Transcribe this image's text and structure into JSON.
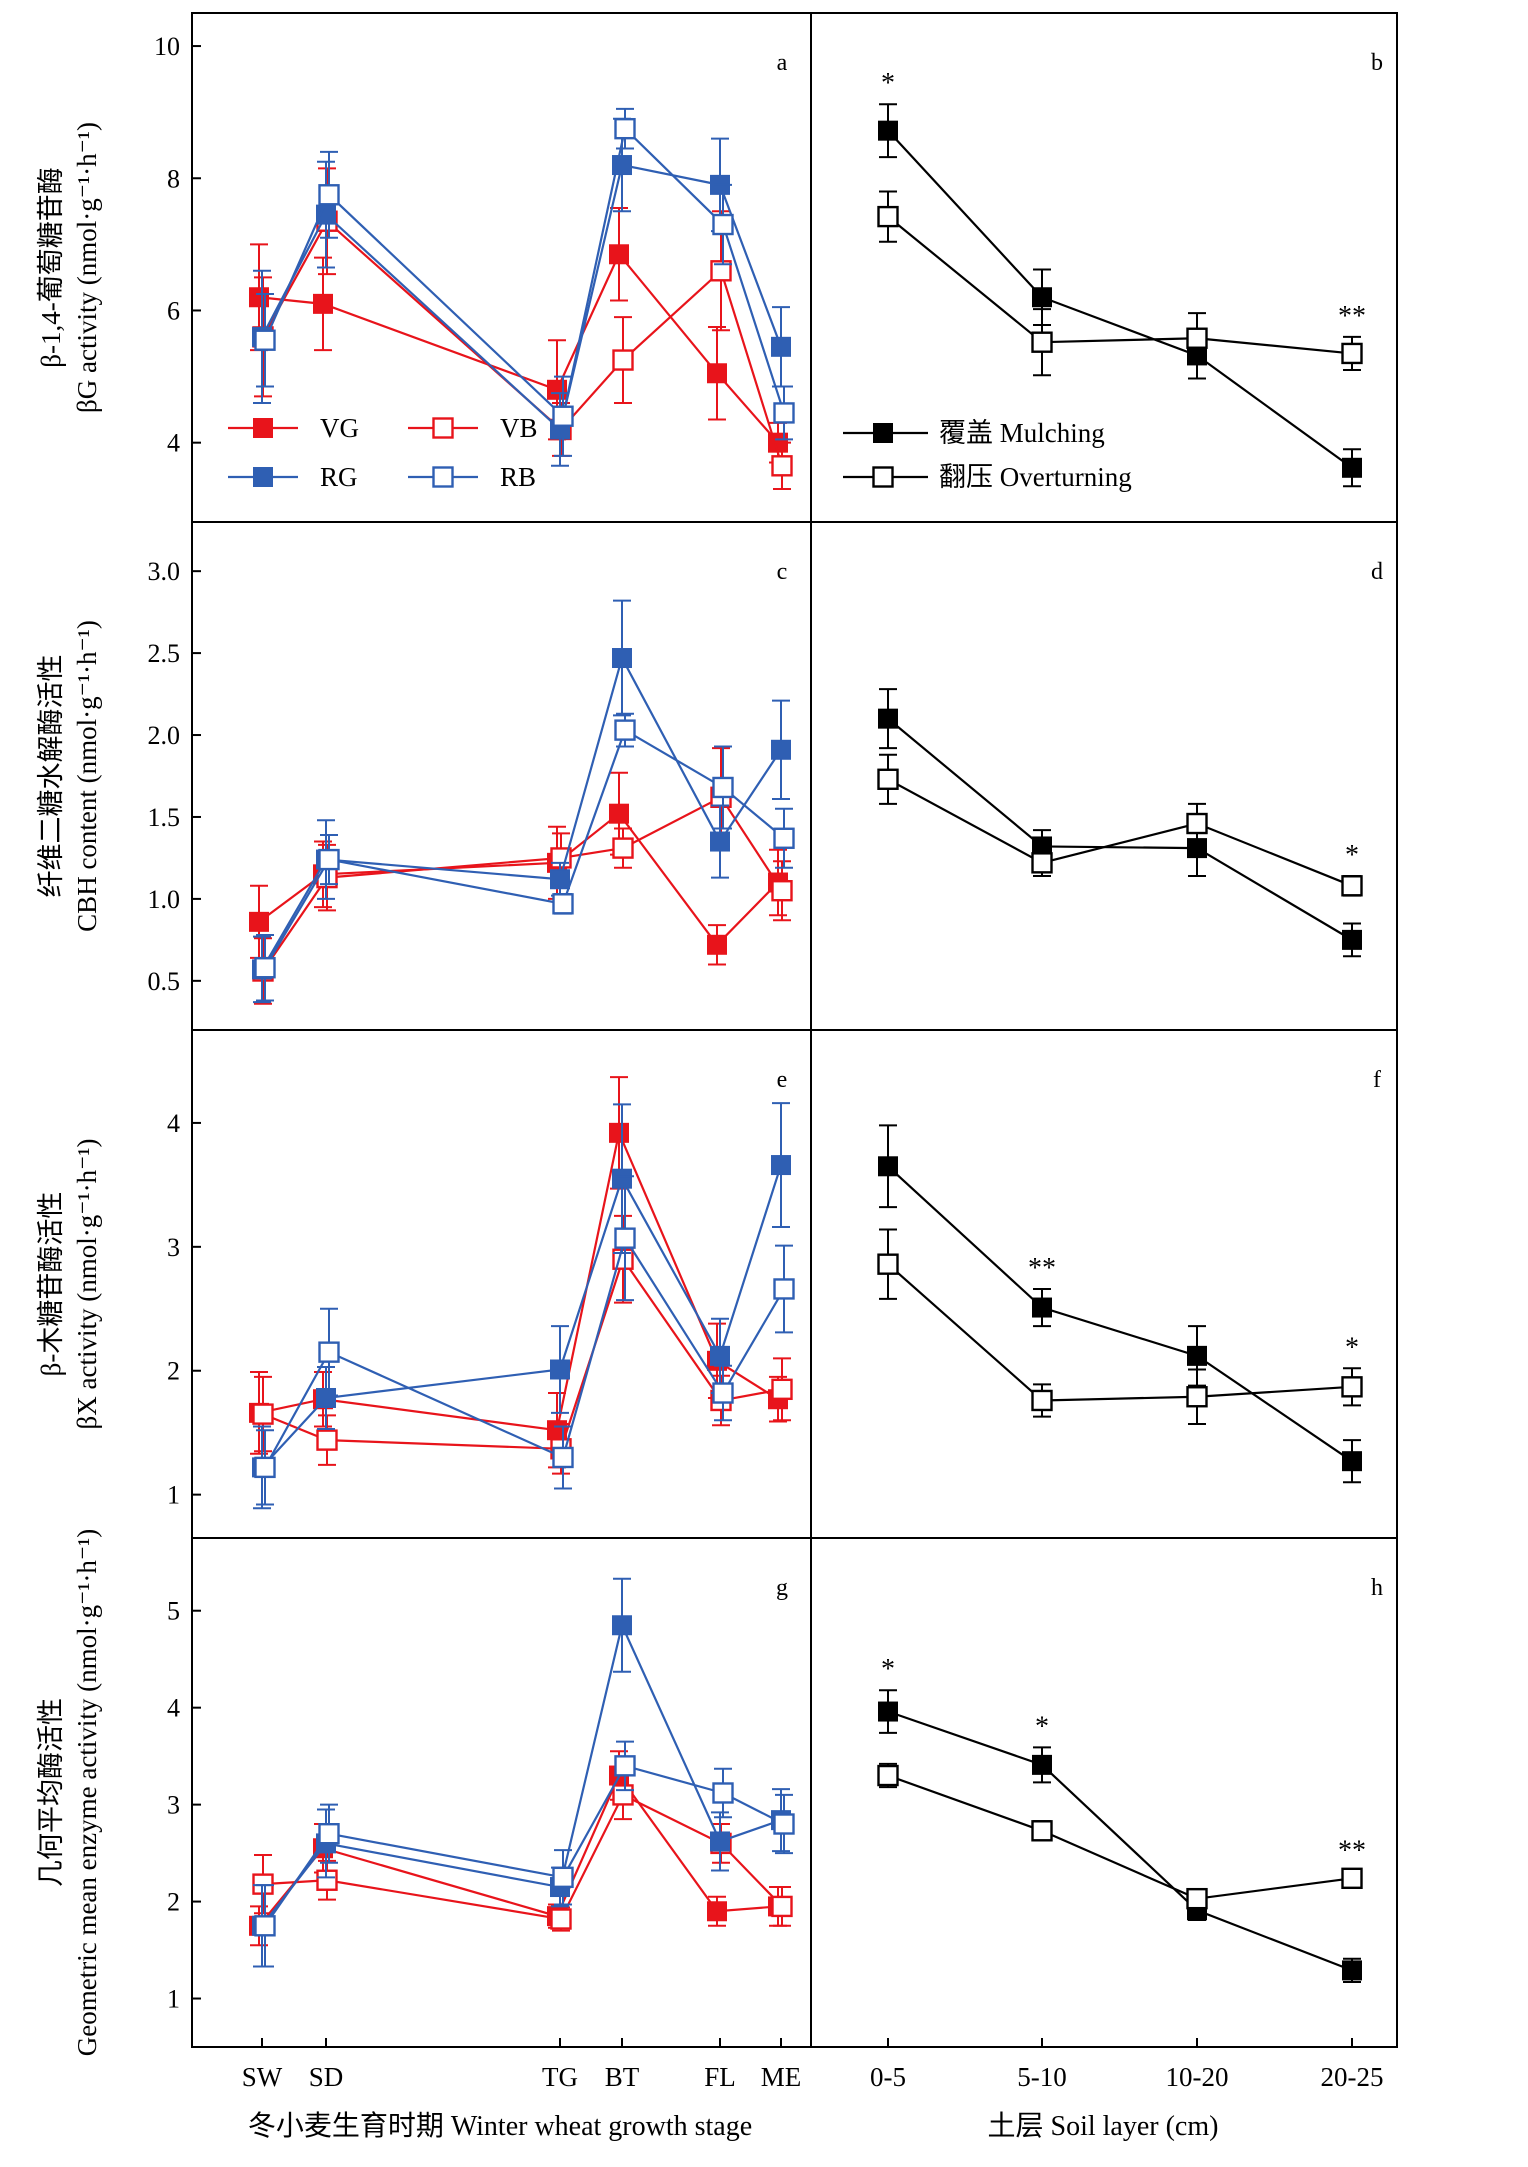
{
  "chart_data": {
    "type": "line",
    "x_left": {
      "categories": [
        "SW",
        "SD",
        "TG",
        "BT",
        "FL",
        "ME"
      ],
      "label": "冬小麦生育时期 Winter wheat growth stage"
    },
    "x_right": {
      "categories": [
        "0-5",
        "5-10",
        "10-20",
        "20-25"
      ],
      "label": "土层 Soil layer (cm)"
    },
    "colors": {
      "V": "#e8141b",
      "R": "#2f5fb3",
      "mulch": "#000000"
    },
    "rows": [
      {
        "ylabel_cn": "β-1,4-葡萄糖苷酶",
        "ylabel_en": "βG activity (nmol·g⁻¹·h⁻¹)",
        "ylim": [
          2.8,
          10.5
        ],
        "yticks": [
          "4",
          "6",
          "8",
          "10"
        ],
        "left": {
          "panel": "a",
          "series": [
            {
              "name": "VG",
              "values": [
                6.2,
                6.1,
                4.8,
                6.85,
                5.05,
                4.0
              ],
              "errors": [
                0.8,
                0.7,
                0.75,
                0.7,
                0.7,
                0.3
              ]
            },
            {
              "name": "VB",
              "values": [
                5.6,
                7.35,
                4.2,
                5.25,
                6.6,
                3.65
              ],
              "errors": [
                0.9,
                0.8,
                0.4,
                0.65,
                0.9,
                0.35
              ]
            },
            {
              "name": "RG",
              "values": [
                5.6,
                7.45,
                4.2,
                8.2,
                7.9,
                5.45
              ],
              "errors": [
                1.0,
                0.8,
                0.55,
                0.7,
                0.7,
                0.6
              ]
            },
            {
              "name": "RB",
              "values": [
                5.55,
                7.75,
                4.4,
                8.75,
                7.3,
                4.45
              ],
              "errors": [
                0.7,
                0.65,
                0.6,
                0.3,
                0.6,
                0.4
              ]
            }
          ]
        },
        "right": {
          "panel": "b",
          "series": [
            {
              "name": "覆盖 Mulching",
              "values": [
                8.72,
                6.2,
                5.32,
                3.62
              ],
              "errors": [
                0.4,
                0.42,
                0.35,
                0.28
              ]
            },
            {
              "name": "翻压 Overturning",
              "values": [
                7.42,
                5.52,
                5.58,
                5.35
              ],
              "errors": [
                0.38,
                0.5,
                0.38,
                0.25
              ]
            }
          ],
          "annotations": [
            "*",
            "",
            "",
            "**"
          ]
        }
      },
      {
        "ylabel_cn": "纤维二糖水解酶活性",
        "ylabel_en": "CBH content (nmol·g⁻¹·h⁻¹)",
        "ylim": [
          0.2,
          3.3
        ],
        "yticks": [
          "0.5",
          "1.0",
          "1.5",
          "2.0",
          "2.5",
          "3.0"
        ],
        "left": {
          "panel": "c",
          "series": [
            {
              "name": "VG",
              "values": [
                0.86,
                1.15,
                1.22,
                1.52,
                0.72,
                1.1
              ],
              "errors": [
                0.22,
                0.2,
                0.22,
                0.25,
                0.12,
                0.2
              ]
            },
            {
              "name": "VB",
              "values": [
                0.56,
                1.13,
                1.25,
                1.31,
                1.62,
                1.05
              ],
              "errors": [
                0.2,
                0.2,
                0.15,
                0.12,
                0.3,
                0.18
              ]
            },
            {
              "name": "RG",
              "values": [
                0.57,
                1.24,
                1.12,
                2.47,
                1.35,
                1.91
              ],
              "errors": [
                0.2,
                0.24,
                0.1,
                0.35,
                0.22,
                0.3
              ]
            },
            {
              "name": "RB",
              "values": [
                0.58,
                1.24,
                0.97,
                2.03,
                1.68,
                1.37
              ],
              "errors": [
                0.2,
                0.15,
                0.06,
                0.1,
                0.25,
                0.18
              ]
            }
          ]
        },
        "right": {
          "panel": "d",
          "series": [
            {
              "name": "覆盖 Mulching",
              "values": [
                2.1,
                1.32,
                1.31,
                0.75
              ],
              "errors": [
                0.18,
                0.1,
                0.17,
                0.1
              ]
            },
            {
              "name": "翻压 Overturning",
              "values": [
                1.73,
                1.22,
                1.46,
                1.08
              ],
              "errors": [
                0.15,
                0.08,
                0.12,
                0.06
              ]
            }
          ],
          "annotations": [
            "",
            "",
            "",
            "*"
          ]
        }
      },
      {
        "ylabel_cn": "β-木糖苷酶活性",
        "ylabel_en": "βX activity (nmol·g⁻¹·h⁻¹)",
        "ylim": [
          0.65,
          4.75
        ],
        "yticks": [
          "1",
          "2",
          "3",
          "4"
        ],
        "left": {
          "panel": "e",
          "series": [
            {
              "name": "VG",
              "values": [
                1.66,
                1.77,
                1.52,
                3.92,
                2.08,
                1.77
              ],
              "errors": [
                0.33,
                0.22,
                0.3,
                0.45,
                0.3,
                0.18
              ]
            },
            {
              "name": "VB",
              "values": [
                1.65,
                1.44,
                1.37,
                2.9,
                1.76,
                1.85
              ],
              "errors": [
                0.3,
                0.2,
                0.2,
                0.35,
                0.2,
                0.25
              ]
            },
            {
              "name": "RG",
              "values": [
                1.22,
                1.78,
                2.01,
                3.55,
                2.12,
                3.66
              ],
              "errors": [
                0.33,
                0.25,
                0.35,
                0.6,
                0.3,
                0.5
              ]
            },
            {
              "name": "RB",
              "values": [
                1.22,
                2.15,
                1.3,
                3.07,
                1.82,
                2.66
              ],
              "errors": [
                0.3,
                0.35,
                0.25,
                0.5,
                0.22,
                0.35
              ]
            }
          ]
        },
        "right": {
          "panel": "f",
          "series": [
            {
              "name": "覆盖 Mulching",
              "values": [
                3.65,
                2.51,
                2.12,
                1.27
              ],
              "errors": [
                0.33,
                0.15,
                0.24,
                0.17
              ]
            },
            {
              "name": "翻压 Overturning",
              "values": [
                2.86,
                1.76,
                1.79,
                1.87
              ],
              "errors": [
                0.28,
                0.13,
                0.22,
                0.15
              ]
            }
          ],
          "annotations": [
            "",
            "**",
            "",
            "*"
          ]
        }
      },
      {
        "ylabel_cn": "几何平均酶活性",
        "ylabel_en": "Geometric mean enzyme activity (nmol·g⁻¹·h⁻¹)",
        "ylim": [
          0.5,
          5.75
        ],
        "yticks": [
          "1",
          "2",
          "3",
          "4",
          "5"
        ],
        "left": {
          "panel": "g",
          "series": [
            {
              "name": "VG",
              "values": [
                1.75,
                2.55,
                1.85,
                3.3,
                1.9,
                1.95
              ],
              "errors": [
                0.2,
                0.25,
                0.12,
                0.25,
                0.15,
                0.2
              ]
            },
            {
              "name": "VB",
              "values": [
                2.18,
                2.22,
                1.82,
                3.1,
                2.6,
                1.95
              ],
              "errors": [
                0.3,
                0.2,
                0.12,
                0.25,
                0.2,
                0.2
              ]
            },
            {
              "name": "RG",
              "values": [
                1.75,
                2.6,
                2.15,
                4.85,
                2.62,
                2.84
              ],
              "errors": [
                0.42,
                0.35,
                0.2,
                0.48,
                0.3,
                0.32
              ]
            },
            {
              "name": "RB",
              "values": [
                1.75,
                2.7,
                2.25,
                3.4,
                3.12,
                2.8
              ],
              "errors": [
                0.42,
                0.3,
                0.28,
                0.25,
                0.25,
                0.3
              ]
            }
          ]
        },
        "right": {
          "panel": "h",
          "series": [
            {
              "name": "覆盖 Mulching",
              "values": [
                3.96,
                3.41,
                1.91,
                1.29
              ],
              "errors": [
                0.22,
                0.18,
                0.1,
                0.12
              ]
            },
            {
              "name": "翻压 Overturning",
              "values": [
                3.3,
                2.73,
                2.03,
                2.24
              ],
              "errors": [
                0.12,
                0.1,
                0.08,
                0.07
              ]
            }
          ],
          "annotations": [
            "*",
            "*",
            "",
            "**"
          ]
        }
      }
    ],
    "legend_left": [
      "VG",
      "VB",
      "RG",
      "RB"
    ],
    "legend_right": [
      "覆盖 Mulching",
      "翻压 Overturning"
    ]
  }
}
